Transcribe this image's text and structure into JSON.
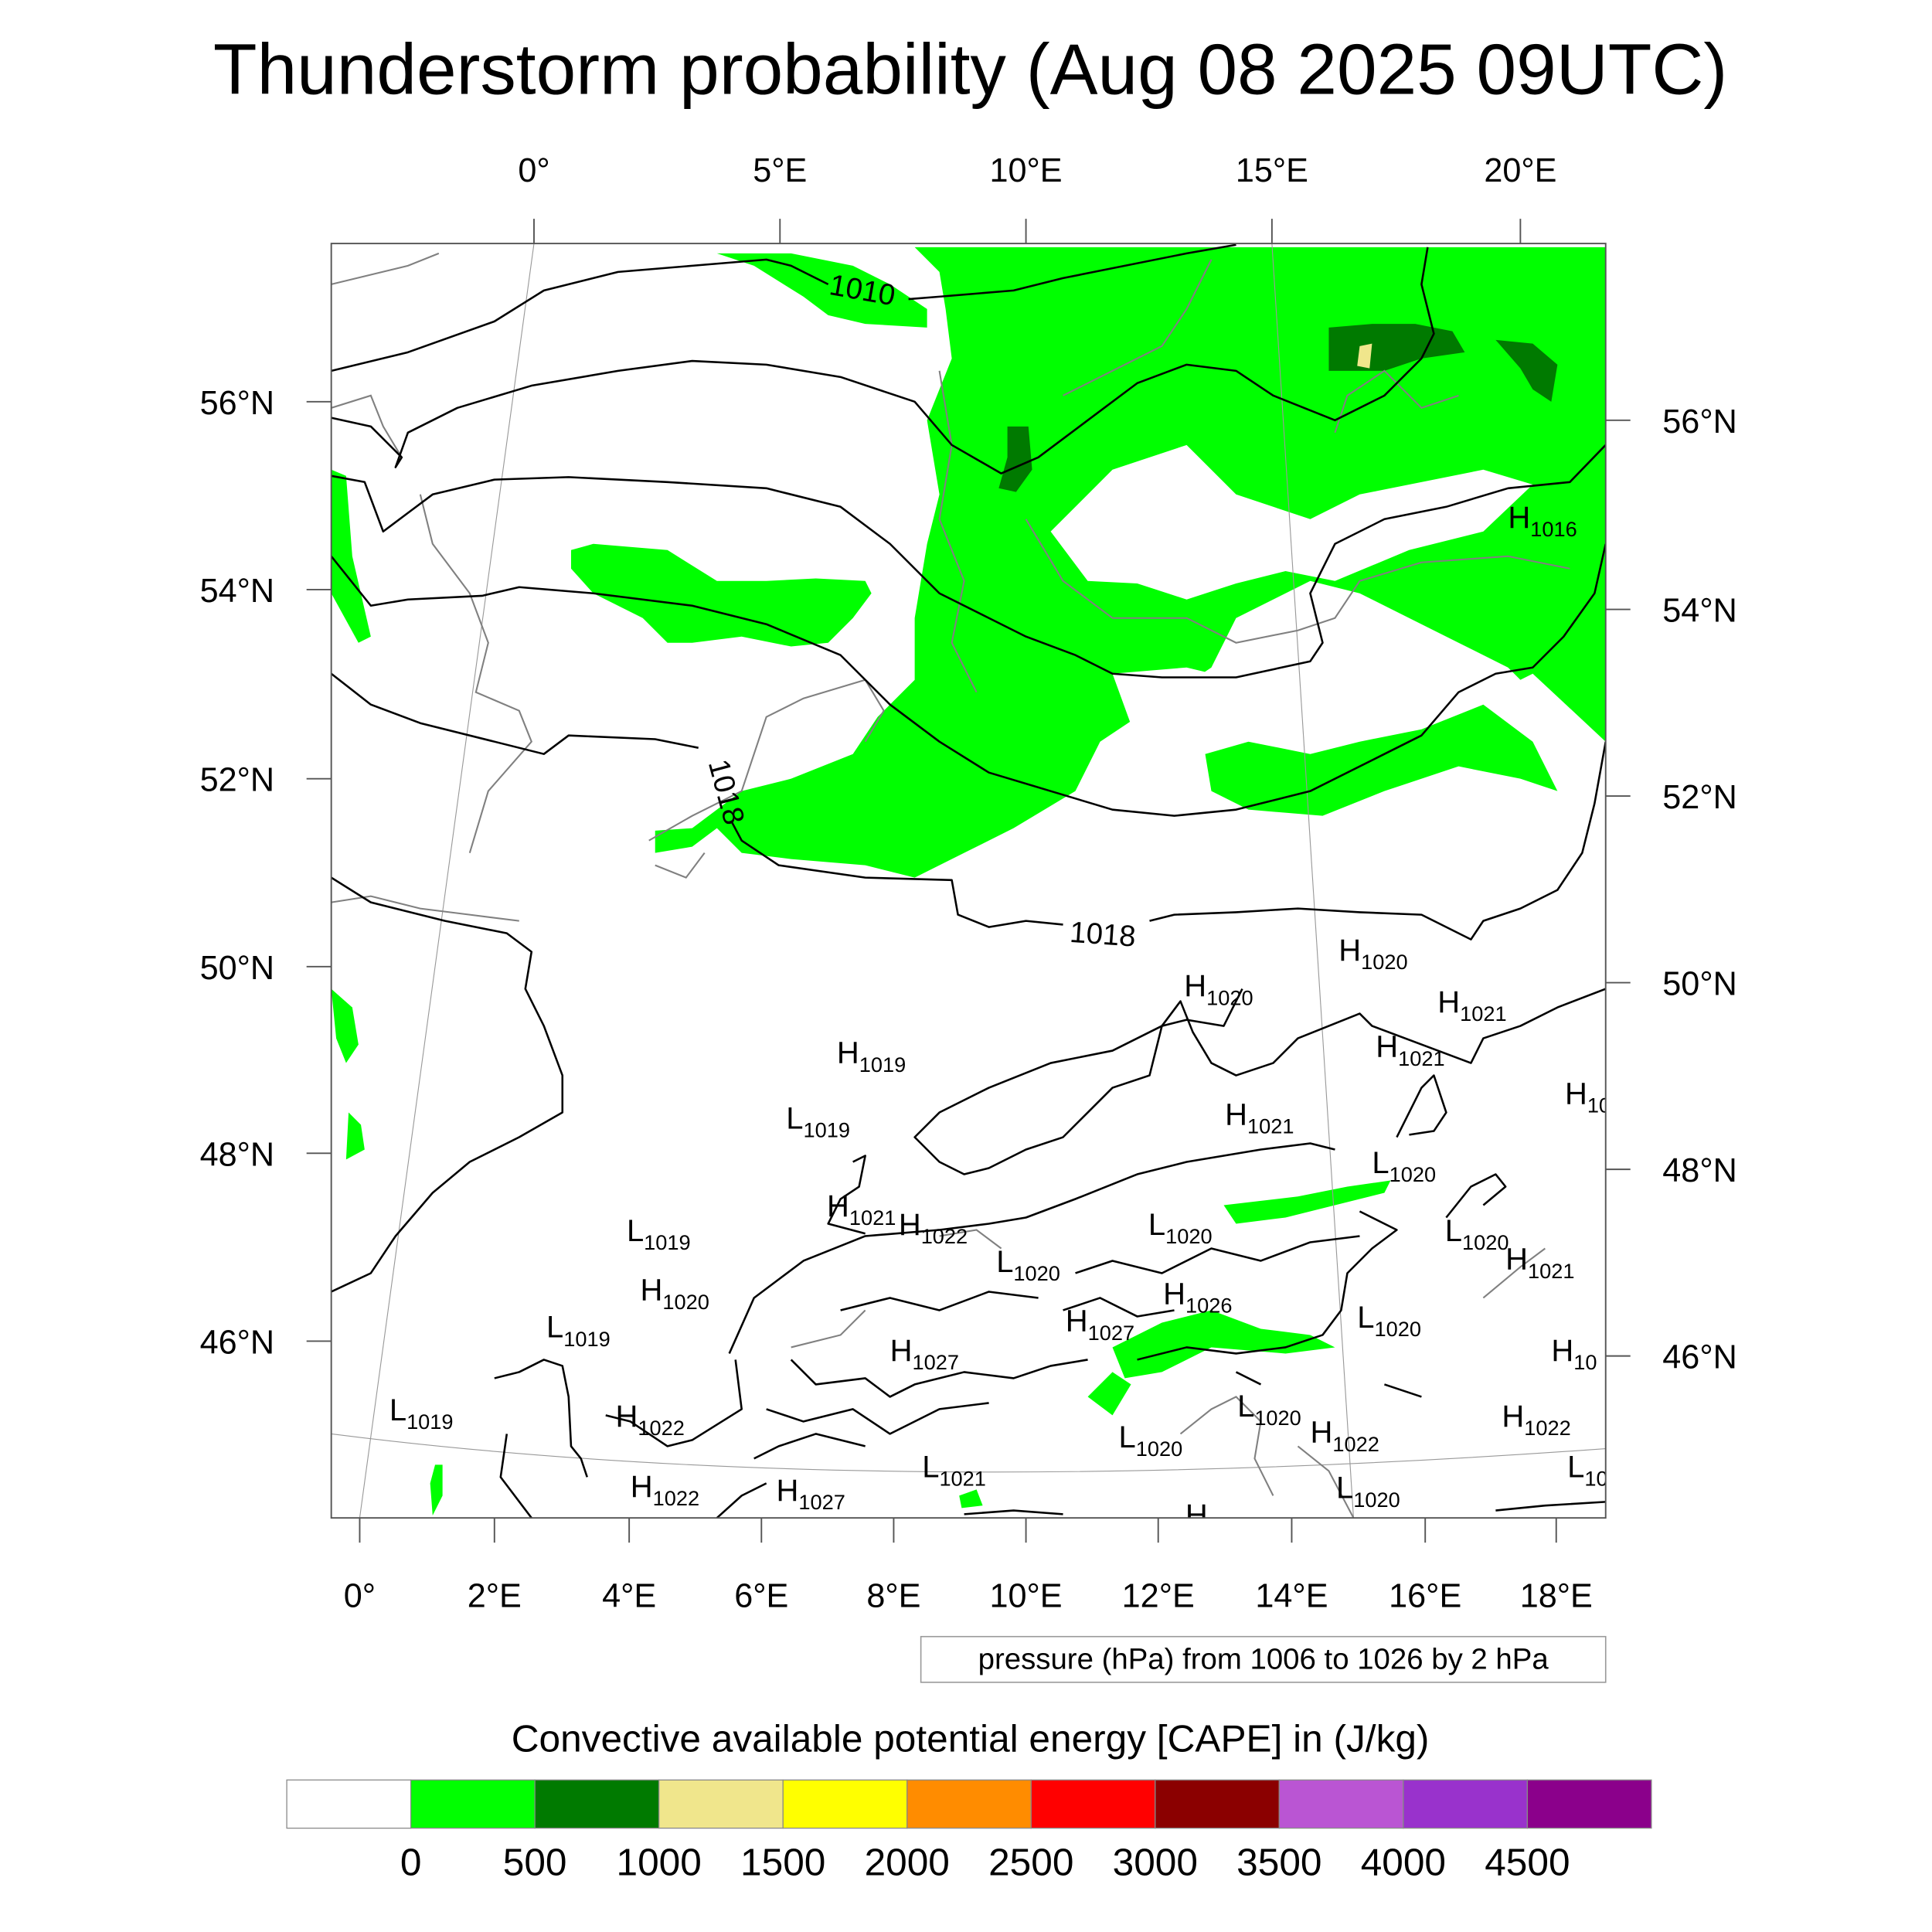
{
  "title": "Thunderstorm probability (Aug 08 2025 09UTC)",
  "axes": {
    "top_lon_labels": [
      "0°",
      "5°E",
      "10°E",
      "15°E",
      "20°E"
    ],
    "bottom_lon_labels": [
      "0°",
      "2°E",
      "4°E",
      "6°E",
      "8°E",
      "10°E",
      "12°E",
      "14°E",
      "16°E",
      "18°E"
    ],
    "left_lat_labels": [
      "56°N",
      "54°N",
      "52°N",
      "50°N",
      "48°N",
      "46°N"
    ],
    "right_lat_labels": [
      "56°N",
      "54°N",
      "52°N",
      "50°N",
      "48°N",
      "46°N"
    ]
  },
  "contour_labels": [
    "1010",
    "1018",
    "1018"
  ],
  "pressure_centers": [
    {
      "type": "H",
      "value": "1016"
    },
    {
      "type": "H",
      "value": "1020"
    },
    {
      "type": "H",
      "value": "1020"
    },
    {
      "type": "H",
      "value": "1021"
    },
    {
      "type": "H",
      "value": "1021"
    },
    {
      "type": "H",
      "value": "1019"
    },
    {
      "type": "L",
      "value": "1019"
    },
    {
      "type": "H",
      "value": "1021"
    },
    {
      "type": "H",
      "value": "10"
    },
    {
      "type": "L",
      "value": "1020"
    },
    {
      "type": "H",
      "value": "1021"
    },
    {
      "type": "H",
      "value": "1022"
    },
    {
      "type": "L",
      "value": "1020"
    },
    {
      "type": "L",
      "value": "1019"
    },
    {
      "type": "L",
      "value": "1020"
    },
    {
      "type": "H",
      "value": "1021"
    },
    {
      "type": "L",
      "value": "1020"
    },
    {
      "type": "H",
      "value": "1026"
    },
    {
      "type": "H",
      "value": "1020"
    },
    {
      "type": "L",
      "value": "1020"
    },
    {
      "type": "H",
      "value": "1027"
    },
    {
      "type": "L",
      "value": "1019"
    },
    {
      "type": "H",
      "value": "1027"
    },
    {
      "type": "H",
      "value": "10"
    },
    {
      "type": "L",
      "value": "1019"
    },
    {
      "type": "H",
      "value": "1022"
    },
    {
      "type": "H",
      "value": "1022"
    },
    {
      "type": "L",
      "value": "1020"
    },
    {
      "type": "L",
      "value": "1020"
    },
    {
      "type": "H",
      "value": "1022"
    },
    {
      "type": "L",
      "value": "1021"
    },
    {
      "type": "L",
      "value": "10"
    },
    {
      "type": "H",
      "value": "1022"
    },
    {
      "type": "H",
      "value": "1027"
    },
    {
      "type": "L",
      "value": "1020"
    },
    {
      "type": "H",
      "value": "1021"
    }
  ],
  "info_box": "pressure (hPa) from 1006 to 1026 by 2 hPa",
  "colorbar": {
    "title": "Convective available potential energy [CAPE] in (J/kg)",
    "colors": [
      "#ffffff",
      "#00ff00",
      "#007a00",
      "#f0e68c",
      "#ffff00",
      "#ff8c00",
      "#ff0000",
      "#8b0000",
      "#ba55d3",
      "#9932cc",
      "#8b008b"
    ],
    "labels": [
      "0",
      "500",
      "1000",
      "1500",
      "2000",
      "2500",
      "3000",
      "3500",
      "4000",
      "4500"
    ]
  }
}
